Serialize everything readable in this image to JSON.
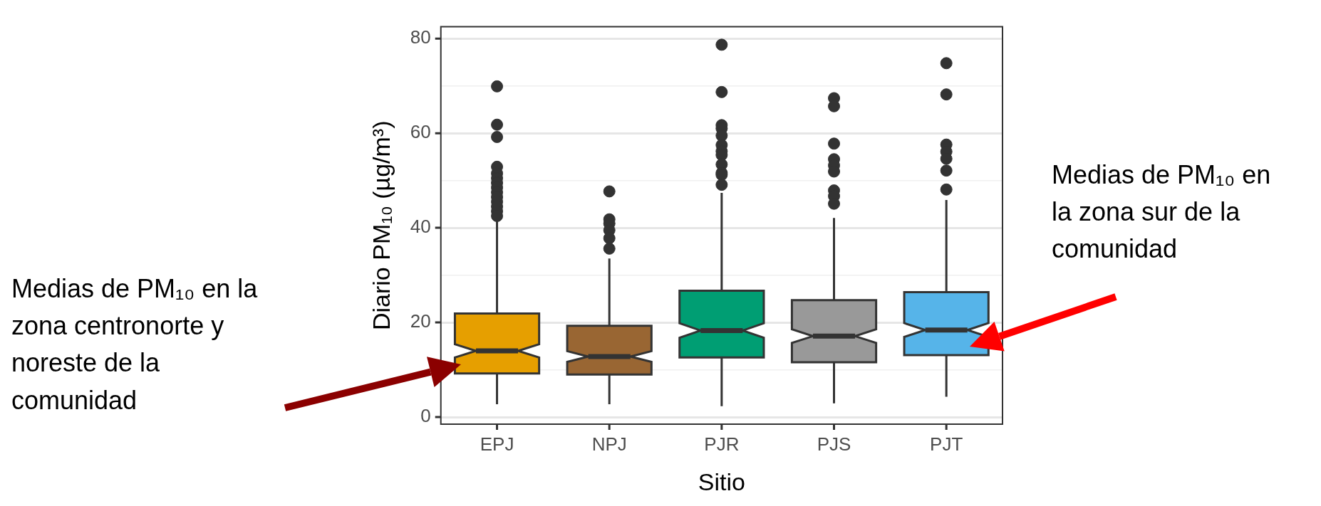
{
  "chart_data": {
    "type": "box",
    "xlabel": "Sitio",
    "ylabel": "Diario PM₁₀ (µg/m³)",
    "categories": [
      "EPJ",
      "NPJ",
      "PJR",
      "PJS",
      "PJT"
    ],
    "colors": [
      "#e69f00",
      "#996633",
      "#009e73",
      "#999999",
      "#56b4e9"
    ],
    "boxes": [
      {
        "low": 2.7,
        "q1": 9.2,
        "median": 14.0,
        "q3": 21.9,
        "high": 42.0,
        "outliers": [
          69.9,
          61.8,
          59.2,
          52.9,
          51.5,
          50.5,
          49.5,
          48.5,
          47.5,
          46.5,
          45.5,
          44.5,
          43.5,
          42.5
        ]
      },
      {
        "low": 2.7,
        "q1": 9.0,
        "median": 12.8,
        "q3": 19.3,
        "high": 33.5,
        "outliers": [
          47.7,
          41.8,
          40.9,
          39.5,
          37.8,
          35.6
        ]
      },
      {
        "low": 2.3,
        "q1": 12.6,
        "median": 18.3,
        "q3": 26.7,
        "high": 47.4,
        "outliers": [
          78.7,
          68.7,
          61.7,
          61.0,
          59.5,
          57.5,
          56.2,
          55.4,
          53.4,
          51.6,
          51.2,
          49.1
        ]
      },
      {
        "low": 2.9,
        "q1": 11.6,
        "median": 17.1,
        "q3": 24.7,
        "high": 42.1,
        "outliers": [
          67.4,
          65.7,
          57.8,
          54.5,
          53.2,
          51.9,
          47.9,
          46.7,
          45.1
        ]
      },
      {
        "low": 4.3,
        "q1": 13.1,
        "median": 18.4,
        "q3": 26.4,
        "high": 45.9,
        "outliers": [
          74.8,
          68.2,
          57.6,
          56.1,
          54.6,
          52.1,
          48.1
        ]
      }
    ],
    "ylim": [
      -1.5,
      82.5
    ],
    "yticks": [
      0,
      {
        "value": 10,
        "label": null
      },
      20,
      {
        "value": 30,
        "label": null
      },
      40,
      {
        "value": 50,
        "label": null
      },
      60,
      {
        "value": 70,
        "label": null
      },
      80
    ],
    "grid": "y",
    "annotations": [
      "Medias de PM₁₀ en la zona centronorte y noreste de la comunidad",
      "Medias de PM₁₀ en la zona sur de la comunidad"
    ]
  }
}
